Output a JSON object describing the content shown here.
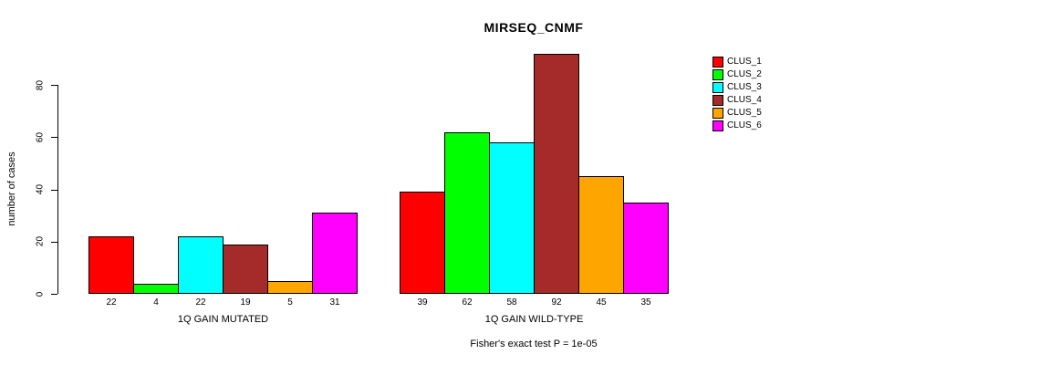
{
  "title": "MIRSEQ_CNMF",
  "chart_data": {
    "type": "bar",
    "title": "MIRSEQ_CNMF",
    "ylabel": "number of cases",
    "xlabel": "",
    "ylim": [
      0,
      80
    ],
    "yticks": [
      0,
      20,
      40,
      60,
      80
    ],
    "grid": false,
    "legend_position": "right",
    "categories": [
      "1Q GAIN MUTATED",
      "1Q GAIN WILD-TYPE"
    ],
    "groups": [
      {
        "label": "1Q GAIN MUTATED",
        "values": [
          22,
          4,
          22,
          19,
          5,
          31
        ]
      },
      {
        "label": "1Q GAIN WILD-TYPE",
        "values": [
          39,
          62,
          58,
          92,
          45,
          35
        ]
      }
    ],
    "series": [
      {
        "name": "CLUS_1",
        "color": "#FF0000",
        "values": [
          22,
          39
        ]
      },
      {
        "name": "CLUS_2",
        "color": "#00FF00",
        "values": [
          4,
          62
        ]
      },
      {
        "name": "CLUS_3",
        "color": "#00FFFF",
        "values": [
          22,
          58
        ]
      },
      {
        "name": "CLUS_4",
        "color": "#A52A2A",
        "values": [
          19,
          92
        ]
      },
      {
        "name": "CLUS_5",
        "color": "#FFA500",
        "values": [
          5,
          45
        ]
      },
      {
        "name": "CLUS_6",
        "color": "#FF00FF",
        "values": [
          31,
          35
        ]
      }
    ],
    "annotation": "Fisher's exact test P = 1e-05"
  }
}
